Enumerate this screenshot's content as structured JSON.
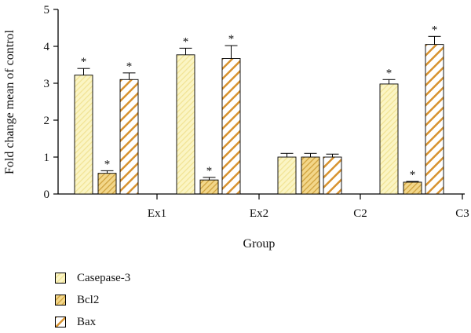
{
  "chart_data": {
    "type": "bar",
    "title": "",
    "xlabel": "Group",
    "ylabel": "Fold change mean of control",
    "ylim": [
      0,
      5
    ],
    "yticks": [
      "0",
      "1",
      "2",
      "3",
      "4",
      "5"
    ],
    "categories": [
      "Ex1",
      "Ex2",
      "C2",
      "C3"
    ],
    "series": [
      {
        "name": "Casepase-3",
        "values": [
          3.22,
          3.77,
          1.0,
          2.98
        ],
        "errors": [
          0.18,
          0.18,
          0.1,
          0.12
        ],
        "significant": [
          "*",
          "*",
          "",
          "*"
        ]
      },
      {
        "name": "Bcl2",
        "values": [
          0.56,
          0.38,
          1.0,
          0.32
        ],
        "errors": [
          0.07,
          0.07,
          0.1,
          0.02
        ],
        "significant": [
          "*",
          "*",
          "",
          "*"
        ]
      },
      {
        "name": "Bax",
        "values": [
          3.1,
          3.67,
          1.0,
          4.05
        ],
        "errors": [
          0.18,
          0.35,
          0.08,
          0.22
        ],
        "significant": [
          "*",
          "*",
          "",
          "*"
        ]
      }
    ],
    "legend_position": "bottom-left",
    "grid": false,
    "colors": {
      "casepase3_fill": "#fbf5c4",
      "casepase3_stripe": "#f1e394",
      "bcl2_fill": "#f3d78a",
      "bcl2_stripe": "#cfa13c",
      "bax_fill": "#ffffff",
      "bax_stripe": "#d7922f",
      "axis": "#000000"
    }
  }
}
